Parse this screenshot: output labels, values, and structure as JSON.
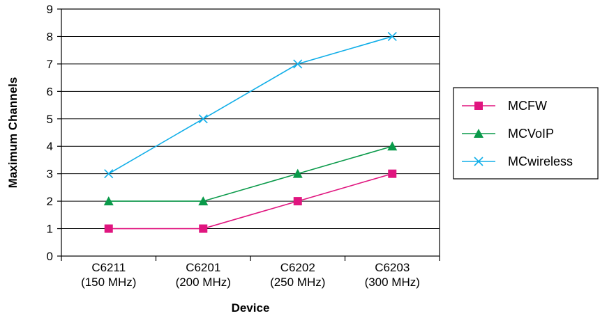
{
  "chart_data": {
    "type": "line",
    "title": "",
    "xlabel": "Device",
    "ylabel": "Maximum Channels",
    "categories": [
      [
        "C6211",
        "(150 MHz)"
      ],
      [
        "C6201",
        "(200 MHz)"
      ],
      [
        "C6202",
        "(250 MHz)"
      ],
      [
        "C6203",
        "(300 MHz)"
      ]
    ],
    "ylim": [
      0,
      9
    ],
    "yticks": [
      "0",
      "1",
      "2",
      "3",
      "4",
      "5",
      "6",
      "7",
      "8",
      "9"
    ],
    "grid": true,
    "legend_position": "right",
    "series": [
      {
        "name": "MCFW",
        "values": [
          1,
          1,
          2,
          3
        ],
        "color": "#e0157f",
        "marker": "square"
      },
      {
        "name": "MCVoIP",
        "values": [
          2,
          2,
          3,
          4
        ],
        "color": "#0a9a4a",
        "marker": "triangle"
      },
      {
        "name": "MCwireless",
        "values": [
          3,
          5,
          7,
          8
        ],
        "color": "#10aee8",
        "marker": "x"
      }
    ]
  }
}
